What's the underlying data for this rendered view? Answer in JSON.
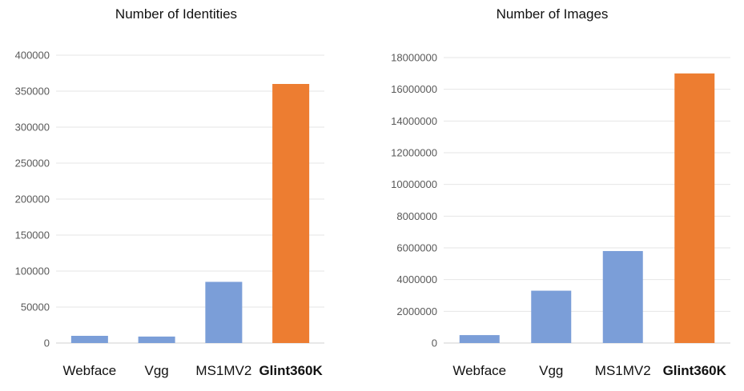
{
  "chart_data": [
    {
      "type": "bar",
      "title": "Number of Identities",
      "categories": [
        "Webface",
        "Vgg",
        "MS1MV2",
        "Glint360K"
      ],
      "highlight_category": "Glint360K",
      "values": [
        10000,
        9000,
        85000,
        360000
      ],
      "yticks": [
        "0",
        "50000",
        "100000",
        "150000",
        "200000",
        "250000",
        "300000",
        "350000",
        "400000"
      ],
      "ylim": [
        0,
        400000
      ],
      "grid": true,
      "colors": {
        "default": "#7b9ed8",
        "highlight": "#ed7d31"
      }
    },
    {
      "type": "bar",
      "title": "Number of Images",
      "categories": [
        "Webface",
        "Vgg",
        "MS1MV2",
        "Glint360K"
      ],
      "highlight_category": "Glint360K",
      "values": [
        500000,
        3300000,
        5800000,
        17000000
      ],
      "yticks": [
        "0",
        "2000000",
        "4000000",
        "6000000",
        "8000000",
        "10000000",
        "12000000",
        "14000000",
        "16000000",
        "18000000"
      ],
      "ylim": [
        0,
        18000000
      ],
      "grid": true,
      "colors": {
        "default": "#7b9ed8",
        "highlight": "#ed7d31"
      }
    }
  ]
}
